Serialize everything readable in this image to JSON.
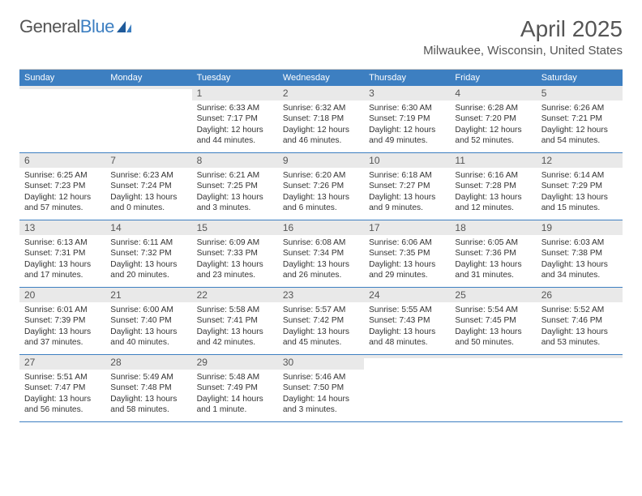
{
  "brand": {
    "name_part1": "General",
    "name_part2": "Blue"
  },
  "title": "April 2025",
  "location": "Milwaukee, Wisconsin, United States",
  "colors": {
    "header_bg": "#3d7fc1",
    "day_num_bg": "#e9e9e9",
    "week_divider": "#3d7fc1",
    "text": "#333333",
    "muted": "#555555"
  },
  "day_labels": [
    "Sunday",
    "Monday",
    "Tuesday",
    "Wednesday",
    "Thursday",
    "Friday",
    "Saturday"
  ],
  "weeks": [
    [
      {
        "num": "",
        "sunrise": "",
        "sunset": "",
        "daylight": ""
      },
      {
        "num": "",
        "sunrise": "",
        "sunset": "",
        "daylight": ""
      },
      {
        "num": "1",
        "sunrise": "Sunrise: 6:33 AM",
        "sunset": "Sunset: 7:17 PM",
        "daylight": "Daylight: 12 hours and 44 minutes."
      },
      {
        "num": "2",
        "sunrise": "Sunrise: 6:32 AM",
        "sunset": "Sunset: 7:18 PM",
        "daylight": "Daylight: 12 hours and 46 minutes."
      },
      {
        "num": "3",
        "sunrise": "Sunrise: 6:30 AM",
        "sunset": "Sunset: 7:19 PM",
        "daylight": "Daylight: 12 hours and 49 minutes."
      },
      {
        "num": "4",
        "sunrise": "Sunrise: 6:28 AM",
        "sunset": "Sunset: 7:20 PM",
        "daylight": "Daylight: 12 hours and 52 minutes."
      },
      {
        "num": "5",
        "sunrise": "Sunrise: 6:26 AM",
        "sunset": "Sunset: 7:21 PM",
        "daylight": "Daylight: 12 hours and 54 minutes."
      }
    ],
    [
      {
        "num": "6",
        "sunrise": "Sunrise: 6:25 AM",
        "sunset": "Sunset: 7:23 PM",
        "daylight": "Daylight: 12 hours and 57 minutes."
      },
      {
        "num": "7",
        "sunrise": "Sunrise: 6:23 AM",
        "sunset": "Sunset: 7:24 PM",
        "daylight": "Daylight: 13 hours and 0 minutes."
      },
      {
        "num": "8",
        "sunrise": "Sunrise: 6:21 AM",
        "sunset": "Sunset: 7:25 PM",
        "daylight": "Daylight: 13 hours and 3 minutes."
      },
      {
        "num": "9",
        "sunrise": "Sunrise: 6:20 AM",
        "sunset": "Sunset: 7:26 PM",
        "daylight": "Daylight: 13 hours and 6 minutes."
      },
      {
        "num": "10",
        "sunrise": "Sunrise: 6:18 AM",
        "sunset": "Sunset: 7:27 PM",
        "daylight": "Daylight: 13 hours and 9 minutes."
      },
      {
        "num": "11",
        "sunrise": "Sunrise: 6:16 AM",
        "sunset": "Sunset: 7:28 PM",
        "daylight": "Daylight: 13 hours and 12 minutes."
      },
      {
        "num": "12",
        "sunrise": "Sunrise: 6:14 AM",
        "sunset": "Sunset: 7:29 PM",
        "daylight": "Daylight: 13 hours and 15 minutes."
      }
    ],
    [
      {
        "num": "13",
        "sunrise": "Sunrise: 6:13 AM",
        "sunset": "Sunset: 7:31 PM",
        "daylight": "Daylight: 13 hours and 17 minutes."
      },
      {
        "num": "14",
        "sunrise": "Sunrise: 6:11 AM",
        "sunset": "Sunset: 7:32 PM",
        "daylight": "Daylight: 13 hours and 20 minutes."
      },
      {
        "num": "15",
        "sunrise": "Sunrise: 6:09 AM",
        "sunset": "Sunset: 7:33 PM",
        "daylight": "Daylight: 13 hours and 23 minutes."
      },
      {
        "num": "16",
        "sunrise": "Sunrise: 6:08 AM",
        "sunset": "Sunset: 7:34 PM",
        "daylight": "Daylight: 13 hours and 26 minutes."
      },
      {
        "num": "17",
        "sunrise": "Sunrise: 6:06 AM",
        "sunset": "Sunset: 7:35 PM",
        "daylight": "Daylight: 13 hours and 29 minutes."
      },
      {
        "num": "18",
        "sunrise": "Sunrise: 6:05 AM",
        "sunset": "Sunset: 7:36 PM",
        "daylight": "Daylight: 13 hours and 31 minutes."
      },
      {
        "num": "19",
        "sunrise": "Sunrise: 6:03 AM",
        "sunset": "Sunset: 7:38 PM",
        "daylight": "Daylight: 13 hours and 34 minutes."
      }
    ],
    [
      {
        "num": "20",
        "sunrise": "Sunrise: 6:01 AM",
        "sunset": "Sunset: 7:39 PM",
        "daylight": "Daylight: 13 hours and 37 minutes."
      },
      {
        "num": "21",
        "sunrise": "Sunrise: 6:00 AM",
        "sunset": "Sunset: 7:40 PM",
        "daylight": "Daylight: 13 hours and 40 minutes."
      },
      {
        "num": "22",
        "sunrise": "Sunrise: 5:58 AM",
        "sunset": "Sunset: 7:41 PM",
        "daylight": "Daylight: 13 hours and 42 minutes."
      },
      {
        "num": "23",
        "sunrise": "Sunrise: 5:57 AM",
        "sunset": "Sunset: 7:42 PM",
        "daylight": "Daylight: 13 hours and 45 minutes."
      },
      {
        "num": "24",
        "sunrise": "Sunrise: 5:55 AM",
        "sunset": "Sunset: 7:43 PM",
        "daylight": "Daylight: 13 hours and 48 minutes."
      },
      {
        "num": "25",
        "sunrise": "Sunrise: 5:54 AM",
        "sunset": "Sunset: 7:45 PM",
        "daylight": "Daylight: 13 hours and 50 minutes."
      },
      {
        "num": "26",
        "sunrise": "Sunrise: 5:52 AM",
        "sunset": "Sunset: 7:46 PM",
        "daylight": "Daylight: 13 hours and 53 minutes."
      }
    ],
    [
      {
        "num": "27",
        "sunrise": "Sunrise: 5:51 AM",
        "sunset": "Sunset: 7:47 PM",
        "daylight": "Daylight: 13 hours and 56 minutes."
      },
      {
        "num": "28",
        "sunrise": "Sunrise: 5:49 AM",
        "sunset": "Sunset: 7:48 PM",
        "daylight": "Daylight: 13 hours and 58 minutes."
      },
      {
        "num": "29",
        "sunrise": "Sunrise: 5:48 AM",
        "sunset": "Sunset: 7:49 PM",
        "daylight": "Daylight: 14 hours and 1 minute."
      },
      {
        "num": "30",
        "sunrise": "Sunrise: 5:46 AM",
        "sunset": "Sunset: 7:50 PM",
        "daylight": "Daylight: 14 hours and 3 minutes."
      },
      {
        "num": "",
        "sunrise": "",
        "sunset": "",
        "daylight": ""
      },
      {
        "num": "",
        "sunrise": "",
        "sunset": "",
        "daylight": ""
      },
      {
        "num": "",
        "sunrise": "",
        "sunset": "",
        "daylight": ""
      }
    ]
  ]
}
